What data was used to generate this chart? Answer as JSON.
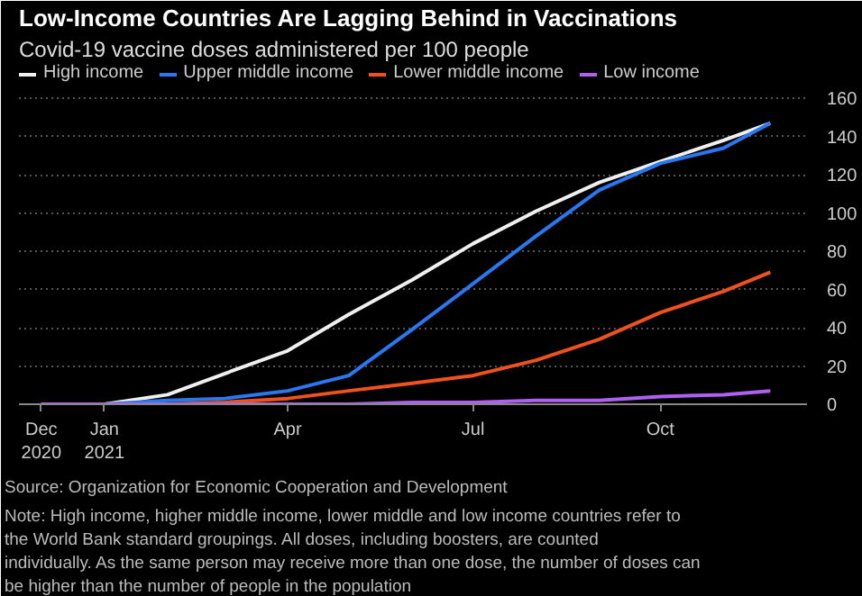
{
  "chart_data": {
    "type": "line",
    "title": "Low-Income Countries Are Lagging Behind in Vaccinations",
    "subtitle": "Covid-19 vaccine doses administered per 100 people",
    "x": [
      "2020-12-01",
      "2021-01-01",
      "2021-02-01",
      "2021-03-01",
      "2021-04-01",
      "2021-05-01",
      "2021-06-01",
      "2021-07-01",
      "2021-08-01",
      "2021-09-01",
      "2021-10-01",
      "2021-11-01",
      "2021-11-24"
    ],
    "series": [
      {
        "name": "High income",
        "color": "#f0f0f0",
        "values": [
          0,
          0,
          5,
          16,
          28,
          47,
          65,
          84,
          101,
          116,
          127,
          138,
          147
        ]
      },
      {
        "name": "Upper middle income",
        "color": "#2a78f0",
        "values": [
          0,
          0,
          2,
          3,
          7,
          15,
          39,
          63,
          88,
          112,
          126,
          134,
          147
        ]
      },
      {
        "name": "Lower middle income",
        "color": "#f0521e",
        "values": [
          0,
          0,
          0,
          1,
          3,
          7,
          11,
          15,
          23,
          34,
          48,
          59,
          69
        ]
      },
      {
        "name": "Low income",
        "color": "#b060f0",
        "values": [
          0,
          0,
          0,
          0,
          0,
          0,
          1,
          1,
          2,
          2,
          4,
          5,
          7
        ]
      }
    ],
    "xlim": [
      "2020-11-20",
      "2021-12-12"
    ],
    "xticks": [
      {
        "value": "2020-12-01",
        "label": "Dec\n2020"
      },
      {
        "value": "2021-01-01",
        "label": "Jan\n2021"
      },
      {
        "value": "2021-04-01",
        "label": "Apr"
      },
      {
        "value": "2021-07-01",
        "label": "Jul"
      },
      {
        "value": "2021-10-01",
        "label": "Oct"
      }
    ],
    "ylim": [
      0,
      178
    ],
    "yticks": [
      0,
      20,
      40,
      60,
      80,
      100,
      120,
      140,
      160
    ],
    "grid": "y",
    "legend": "top left",
    "annotations": [
      "Source: Organization for Economic Cooperation and Development",
      "Note: High income, higher middle income, lower middle and low income countries refer to the World Bank standard groupings. All doses, including boosters, are counted individually. As the same person may receive more than one dose, the number of doses can be higher than the number of people in the population"
    ]
  }
}
